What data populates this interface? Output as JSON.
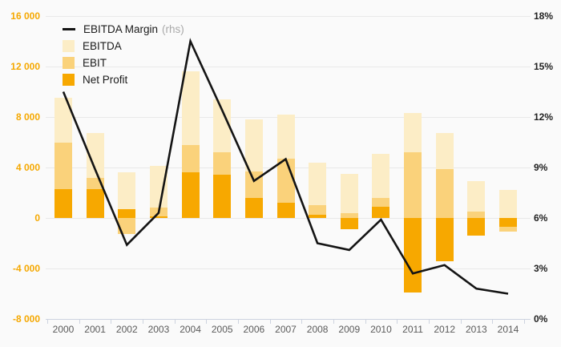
{
  "chart_data": {
    "type": "combo-bar-line",
    "title": "",
    "categories": [
      "2000",
      "2001",
      "2002",
      "2003",
      "2004",
      "2005",
      "2006",
      "2007",
      "2008",
      "2009",
      "2010",
      "2011",
      "2012",
      "2013",
      "2014"
    ],
    "series": [
      {
        "name": "EBITDA Margin",
        "type": "line",
        "axis": "right",
        "unit": "%",
        "values": [
          13.5,
          8.9,
          4.4,
          6.3,
          16.5,
          12.4,
          8.2,
          9.5,
          4.5,
          4.1,
          5.9,
          2.7,
          3.2,
          1.8,
          1.5
        ]
      },
      {
        "name": "EBITDA",
        "type": "bar",
        "axis": "left",
        "values": [
          9500,
          6700,
          3600,
          4100,
          11600,
          9400,
          7800,
          8200,
          4400,
          3500,
          5100,
          8300,
          6700,
          2900,
          2250
        ]
      },
      {
        "name": "EBIT",
        "type": "bar",
        "axis": "left",
        "values": [
          6000,
          3200,
          -1300,
          800,
          5800,
          5200,
          3700,
          4700,
          1000,
          350,
          1600,
          5200,
          3900,
          500,
          -1100
        ]
      },
      {
        "name": "Net Profit",
        "type": "bar",
        "axis": "left",
        "values": [
          2300,
          2300,
          700,
          150,
          3600,
          3400,
          1600,
          1200,
          250,
          -900,
          900,
          -5900,
          -3400,
          -1400,
          -700
        ]
      }
    ],
    "left_axis": {
      "min": -8000,
      "max": 16000,
      "tick_step": 4000,
      "tick_labels": [
        "16 000",
        "12 000",
        "8 000",
        "4 000",
        "0",
        "-4 000",
        "-8 000"
      ]
    },
    "right_axis": {
      "min": 0,
      "max": 18,
      "tick_step": 3,
      "tick_labels": [
        "18%",
        "15%",
        "12%",
        "9%",
        "6%",
        "3%",
        "0%"
      ]
    },
    "legend": {
      "position": "top-left",
      "items": [
        {
          "label": "EBITDA Margin",
          "suffix": "(rhs)",
          "swatch": "line"
        },
        {
          "label": "EBITDA",
          "suffix": "",
          "swatch": "square"
        },
        {
          "label": "EBIT",
          "suffix": "",
          "swatch": "square"
        },
        {
          "label": "Net Profit",
          "suffix": "",
          "swatch": "square"
        }
      ]
    },
    "colors": {
      "ebitda": "#fcedc6",
      "ebit": "#fad27b",
      "net_profit": "#f7a800",
      "line": "#141414",
      "left_axis_text": "#f5a800",
      "right_axis_text": "#1f1f1f",
      "x_axis_text": "#5a5a5a",
      "gridline": "#e9e9e9",
      "axis_line": "#cdd3df",
      "background": "#fafafa"
    },
    "grid": true
  }
}
